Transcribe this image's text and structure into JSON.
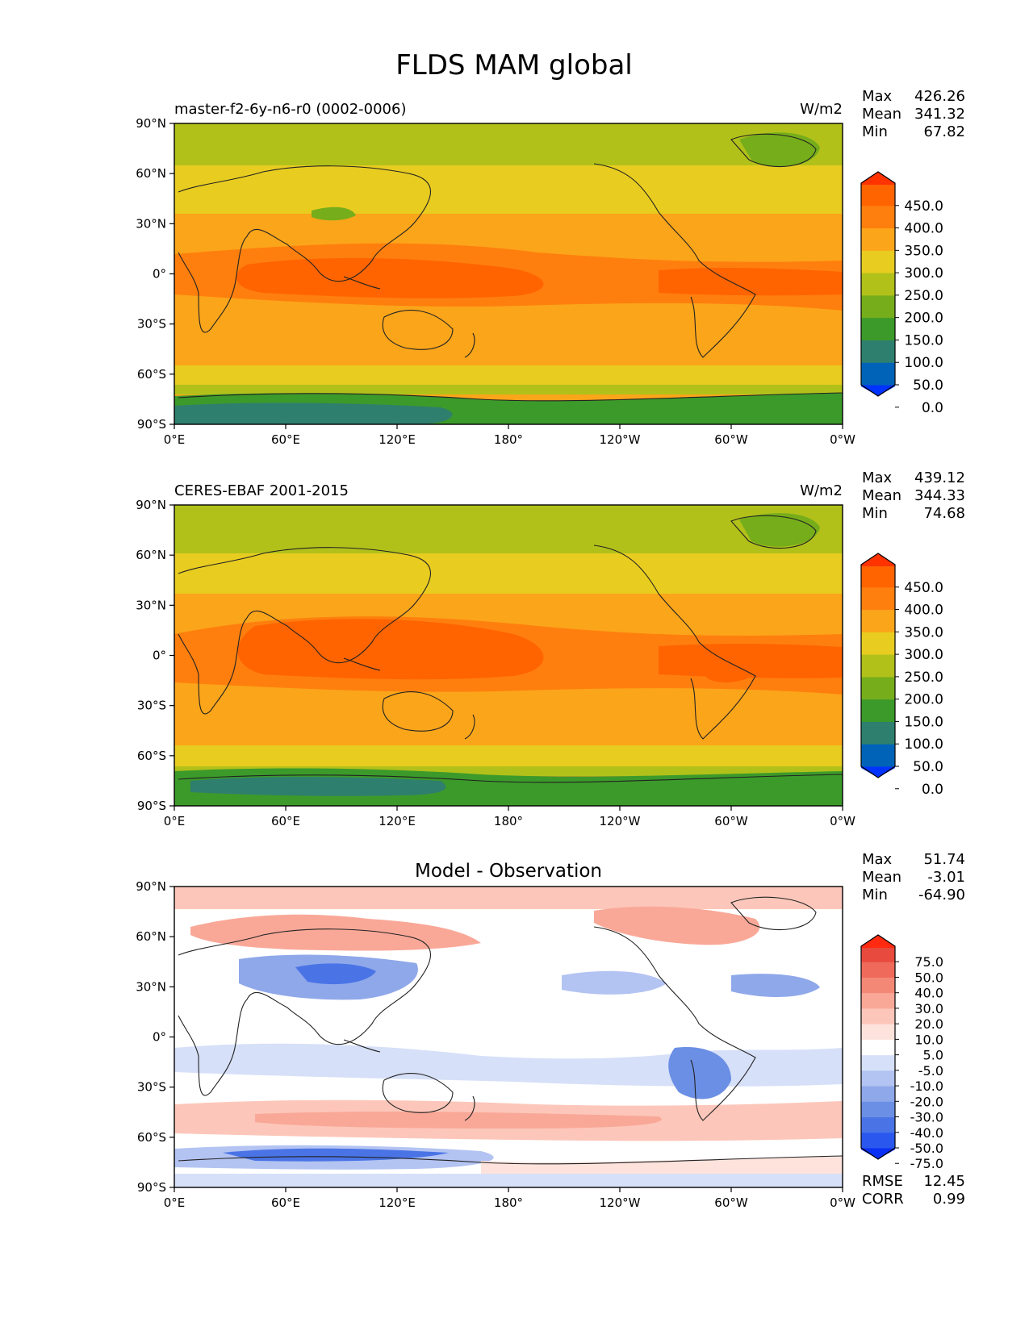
{
  "title": "FLDS MAM global",
  "lat_ticks": [
    "90°N",
    "60°N",
    "30°N",
    "0°",
    "30°S",
    "60°S",
    "90°S"
  ],
  "lon_ticks": [
    "0°E",
    "60°E",
    "120°E",
    "180°",
    "120°W",
    "60°W",
    "0°W"
  ],
  "panels": [
    {
      "kind": "model",
      "left_title": "master-f2-6y-n6-r0 (0002-0006)",
      "center_title": "",
      "units": "W/m2",
      "stats": [
        {
          "label": "Max",
          "value": "426.26"
        },
        {
          "label": "Mean",
          "value": "341.32"
        },
        {
          "label": "Min",
          "value": "67.82"
        }
      ],
      "colorbar": {
        "labels": [
          "450.0",
          "400.0",
          "350.0",
          "300.0",
          "250.0",
          "200.0",
          "150.0",
          "100.0",
          "50.0",
          "0.0"
        ],
        "colors": [
          "#0033ff",
          "#0063b8",
          "#2e7f6e",
          "#3c9a2a",
          "#76ad1a",
          "#b1c11a",
          "#e8cc20",
          "#fba51a",
          "#ff7f0e",
          "#ff6400",
          "#ff3300"
        ]
      },
      "bottom_stats": []
    },
    {
      "kind": "obs",
      "left_title": "CERES-EBAF 2001-2015",
      "center_title": "",
      "units": "W/m2",
      "stats": [
        {
          "label": "Max",
          "value": "439.12"
        },
        {
          "label": "Mean",
          "value": "344.33"
        },
        {
          "label": "Min",
          "value": "74.68"
        }
      ],
      "colorbar": {
        "labels": [
          "450.0",
          "400.0",
          "350.0",
          "300.0",
          "250.0",
          "200.0",
          "150.0",
          "100.0",
          "50.0",
          "0.0"
        ],
        "colors": [
          "#0033ff",
          "#0063b8",
          "#2e7f6e",
          "#3c9a2a",
          "#76ad1a",
          "#b1c11a",
          "#e8cc20",
          "#fba51a",
          "#ff7f0e",
          "#ff6400",
          "#ff3300"
        ]
      },
      "bottom_stats": []
    },
    {
      "kind": "diff",
      "left_title": "",
      "center_title": "Model - Observation",
      "units": "",
      "stats": [
        {
          "label": "Max",
          "value": "51.74"
        },
        {
          "label": "Mean",
          "value": "-3.01"
        },
        {
          "label": "Min",
          "value": "-64.90"
        }
      ],
      "colorbar": {
        "labels": [
          "75.0",
          "50.0",
          "40.0",
          "30.0",
          "20.0",
          "10.0",
          "5.0",
          "-5.0",
          "-10.0",
          "-20.0",
          "-30.0",
          "-40.0",
          "-50.0",
          "-75.0"
        ],
        "colors": [
          "#0a30f5",
          "#2a58ee",
          "#4a74e6",
          "#6b8fe4",
          "#8fa8ea",
          "#b3c3f2",
          "#d6e0f8",
          "#ffffff",
          "#fde3dc",
          "#fcc7ba",
          "#f9a898",
          "#f48876",
          "#ef6a5a",
          "#e84a3e",
          "#ff2a10"
        ]
      },
      "bottom_stats": [
        {
          "label": "RMSE",
          "value": "12.45"
        },
        {
          "label": "CORR",
          "value": "0.99"
        }
      ]
    }
  ]
}
